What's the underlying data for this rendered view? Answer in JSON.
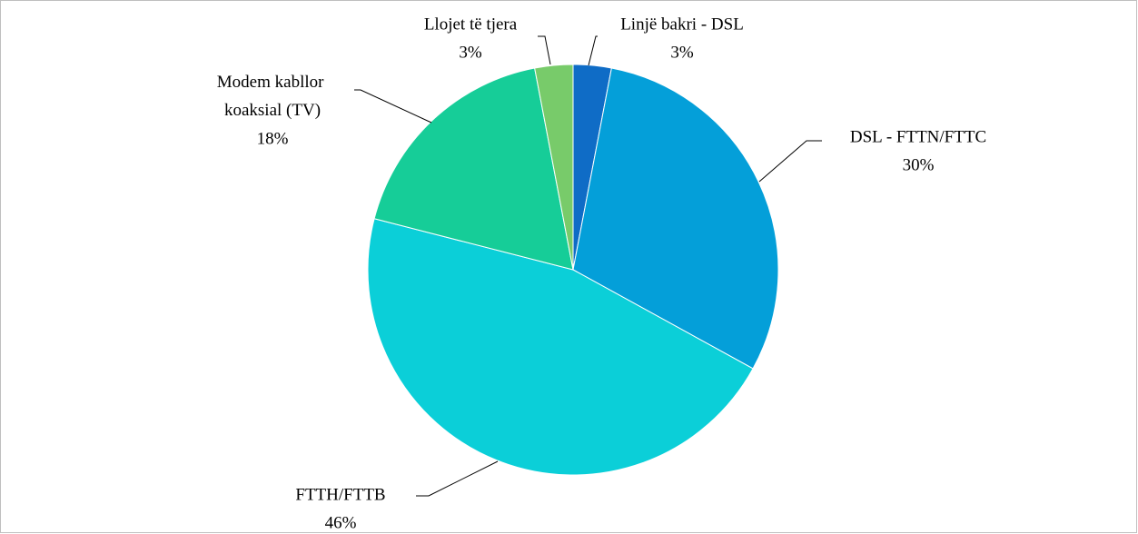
{
  "chart_data": {
    "type": "pie",
    "categories": [
      "Linjë bakri - DSL",
      "DSL - FTTN/FTTC",
      "FTTH/FTTB",
      "Modem kabllor koaksial (TV)",
      "Llojet të tjera"
    ],
    "values": [
      3,
      30,
      46,
      18,
      3
    ],
    "value_labels": [
      "3%",
      "30%",
      "46%",
      "18%",
      "3%"
    ],
    "colors": [
      "#0f6cc6",
      "#049fd9",
      "#0bcfd8",
      "#16cd98",
      "#78cb6a"
    ]
  }
}
